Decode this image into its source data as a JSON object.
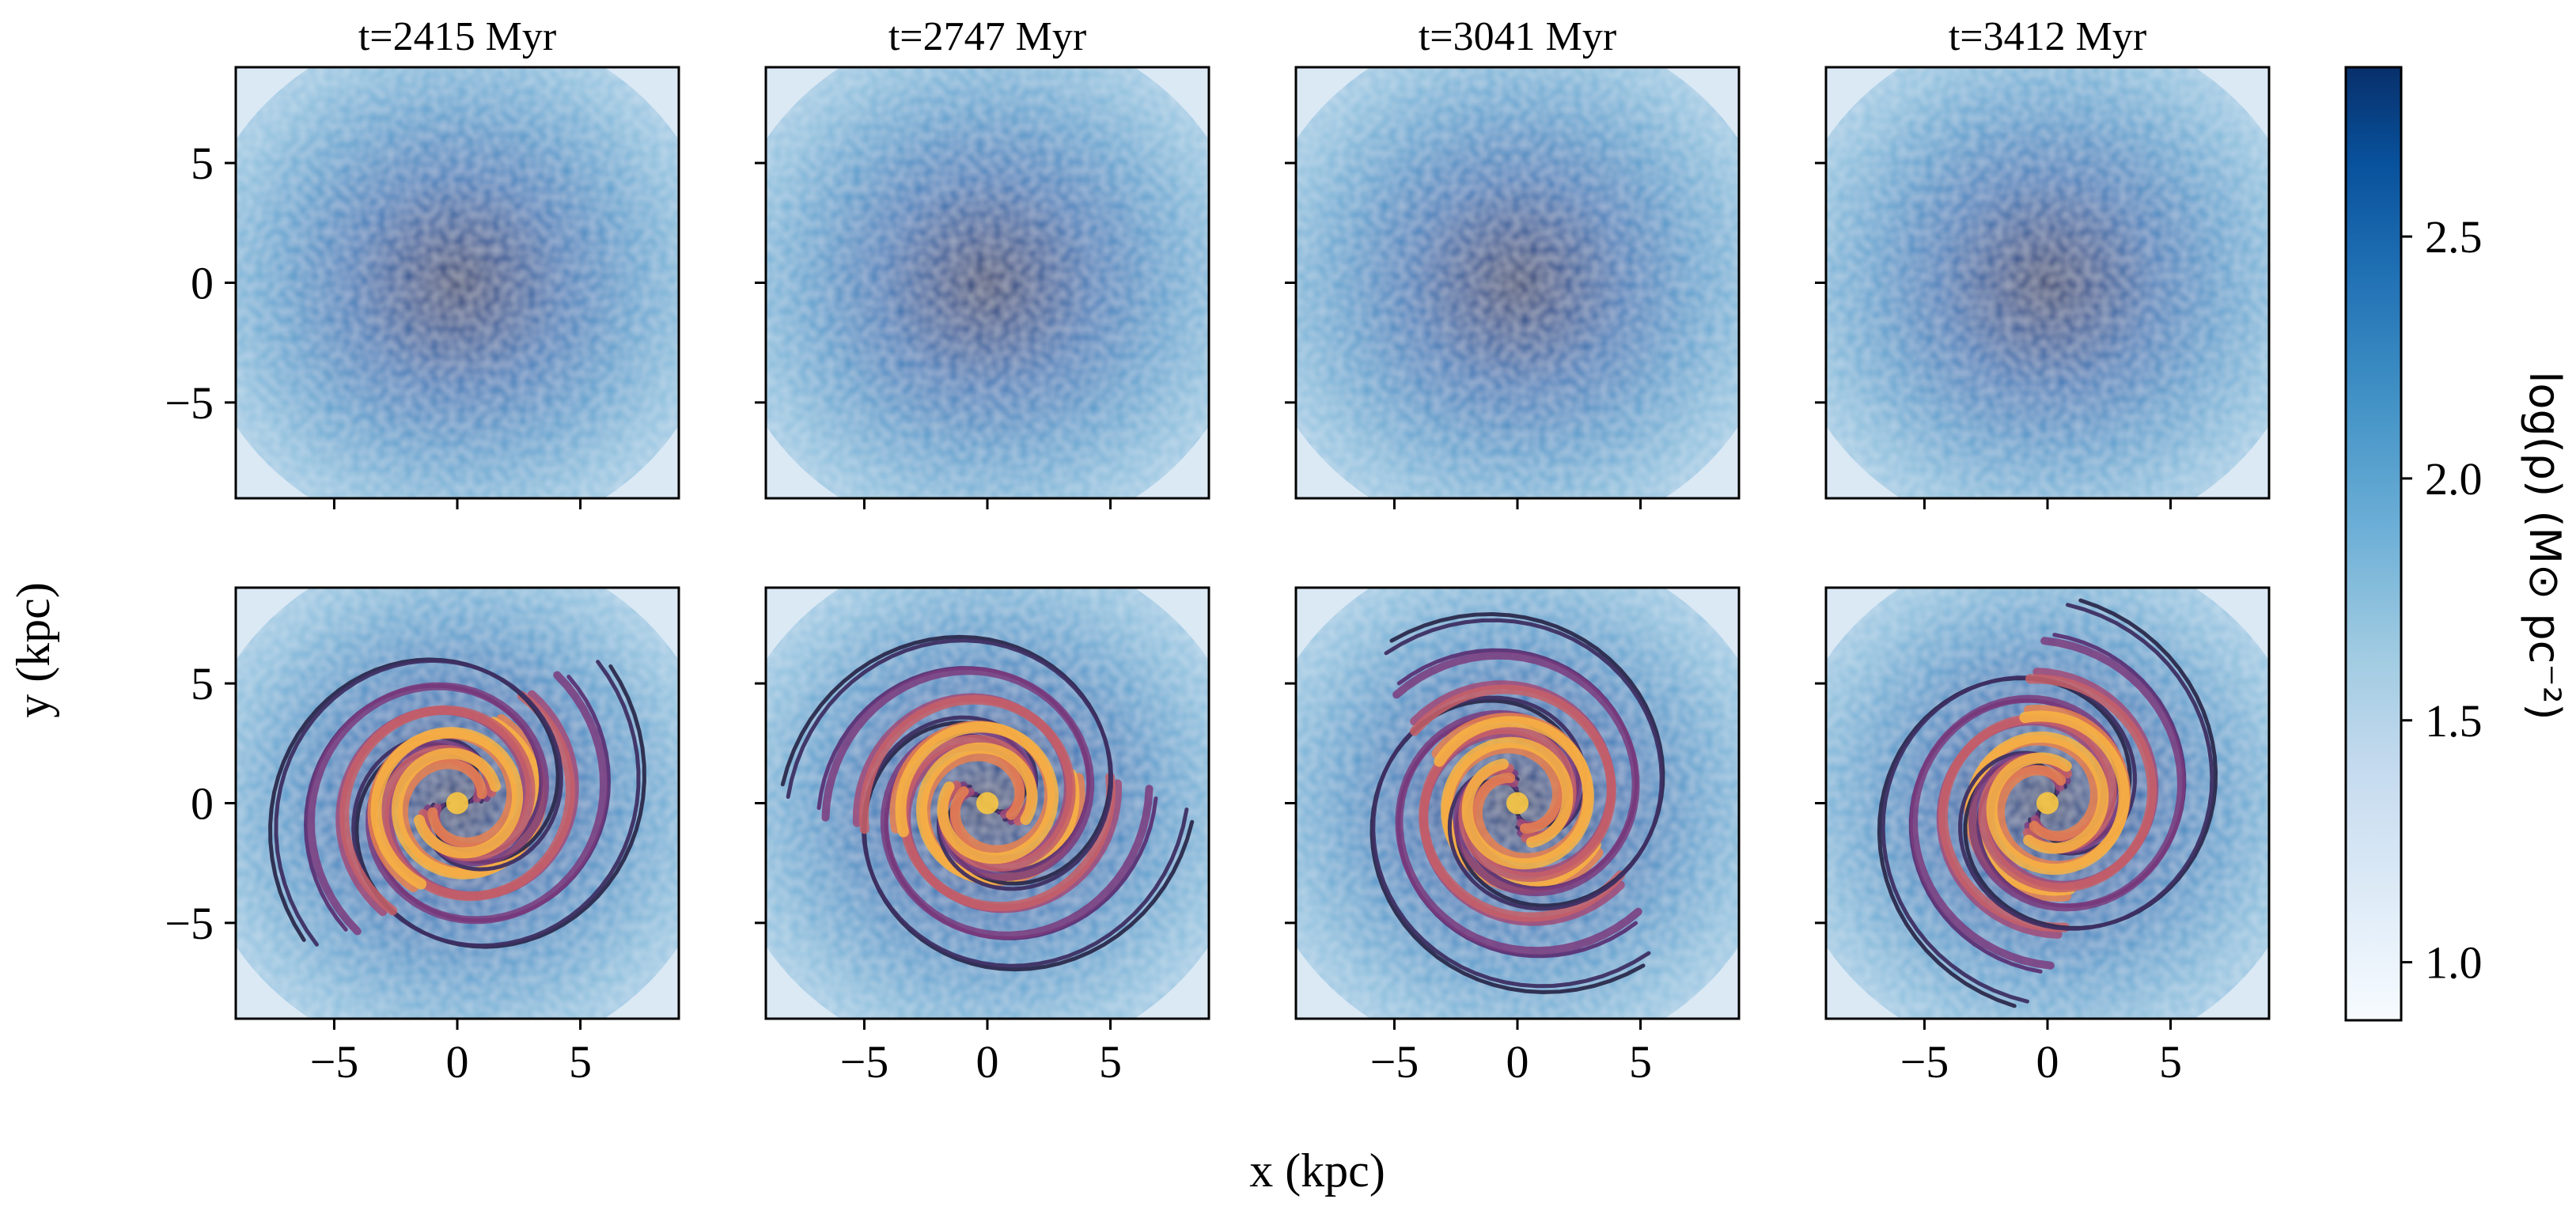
{
  "chart_data": {
    "type": "heatmap",
    "layout": "2 rows x 4 columns of panels, shared axes",
    "xlabel": "x (kpc)",
    "ylabel": "y (kpc)",
    "xlim": [
      -9,
      9
    ],
    "ylim": [
      -9,
      9
    ],
    "xticks": [
      "−5",
      "0",
      "5"
    ],
    "yticks": [
      "5",
      "0",
      "−5"
    ],
    "xtick_values": [
      -5,
      0,
      5
    ],
    "ytick_values": [
      5,
      0,
      -5
    ],
    "panel_titles": [
      "t=2415 Myr",
      "t=2747 Myr",
      "t=3041 Myr",
      "t=3412 Myr"
    ],
    "bottom_row": "same stellar density maps overlaid with gas density contours (magma colormap) showing two-armed spiral structure",
    "colormap": "Blues",
    "contour_colormap": "magma",
    "colorbar": {
      "label": "log(ρ) (M⊙ pc⁻²)",
      "range": [
        0.88,
        2.85
      ],
      "ticks": [
        "1.0",
        "1.5",
        "2.0",
        "2.5"
      ],
      "tick_values": [
        1.0,
        1.5,
        2.0,
        2.5
      ],
      "low_color": "#f7fbff",
      "high_color": "#08306b"
    }
  }
}
